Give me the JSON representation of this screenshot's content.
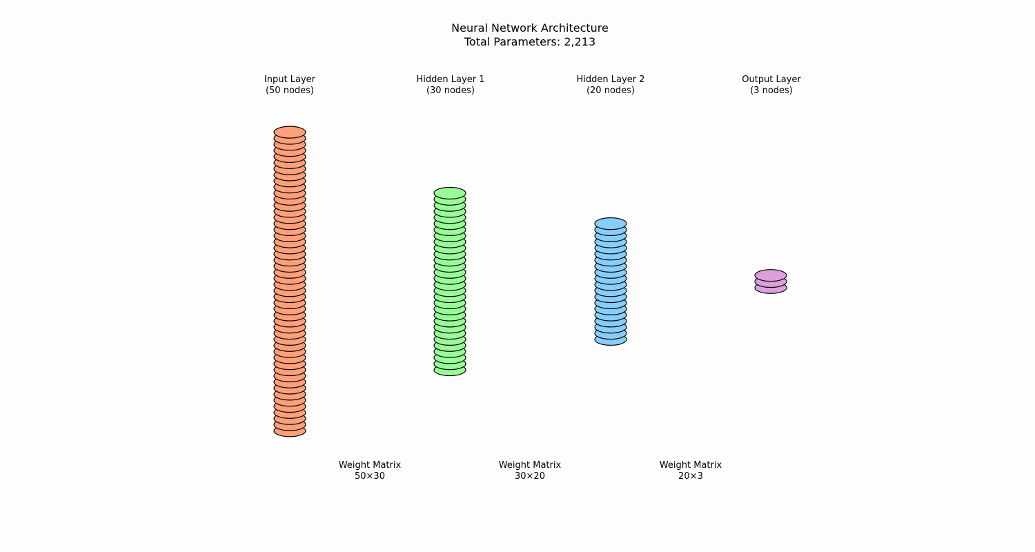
{
  "title": "Neural Network Architecture",
  "subtitle": "Total Parameters: 2,213",
  "layers": [
    {
      "name": "Input Layer",
      "nodes_label": "(50 nodes)",
      "nodes": 50,
      "color": "#ffa07a"
    },
    {
      "name": "Hidden Layer 1",
      "nodes_label": "(30 nodes)",
      "nodes": 30,
      "color": "#98fb98"
    },
    {
      "name": "Hidden Layer 2",
      "nodes_label": "(20 nodes)",
      "nodes": 20,
      "color": "#87cefa"
    },
    {
      "name": "Output Layer",
      "nodes_label": "(3 nodes)",
      "nodes": 3,
      "color": "#dda0dd"
    }
  ],
  "weights": [
    {
      "title": "Weight Matrix",
      "dims": "50×30"
    },
    {
      "title": "Weight Matrix",
      "dims": "30×20"
    },
    {
      "title": "Weight Matrix",
      "dims": "20×3"
    }
  ],
  "stroke_color": "#000000"
}
